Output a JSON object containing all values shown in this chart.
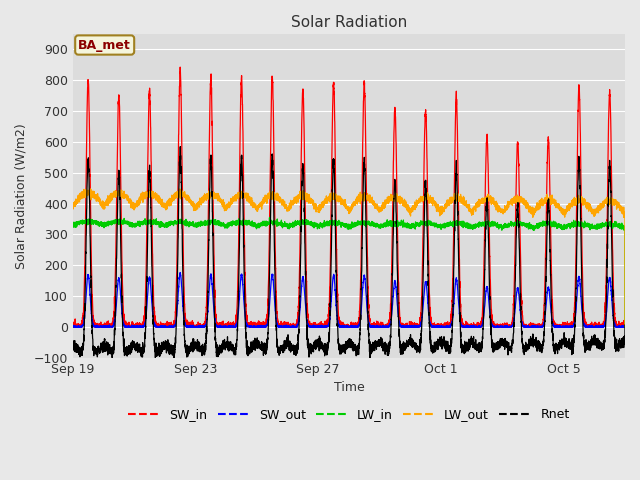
{
  "title": "Solar Radiation",
  "xlabel": "Time",
  "ylabel": "Solar Radiation (W/m2)",
  "ylim": [
    -100,
    950
  ],
  "yticks": [
    -100,
    0,
    100,
    200,
    300,
    400,
    500,
    600,
    700,
    800,
    900
  ],
  "annotation": "BA_met",
  "bg_color": "#e8e8e8",
  "plot_bg_color": "#dcdcdc",
  "legend_entries": [
    "SW_in",
    "SW_out",
    "LW_in",
    "LW_out",
    "Rnet"
  ],
  "legend_colors": [
    "#ff0000",
    "#0000ff",
    "#00cc00",
    "#ffa500",
    "#000000"
  ],
  "xtick_labels": [
    "Sep 19",
    "Sep 23",
    "Sep 27",
    "Oct 1",
    "Oct 5"
  ],
  "xtick_positions": [
    0,
    4,
    8,
    12,
    16
  ],
  "n_days": 18,
  "SW_in_peaks": [
    800,
    750,
    760,
    825,
    800,
    805,
    810,
    770,
    790,
    785,
    705,
    700,
    740,
    620,
    600,
    610,
    780,
    760
  ],
  "LW_in_base": 330,
  "LW_out_base": 390,
  "figsize": [
    6.4,
    4.8
  ],
  "dpi": 100
}
